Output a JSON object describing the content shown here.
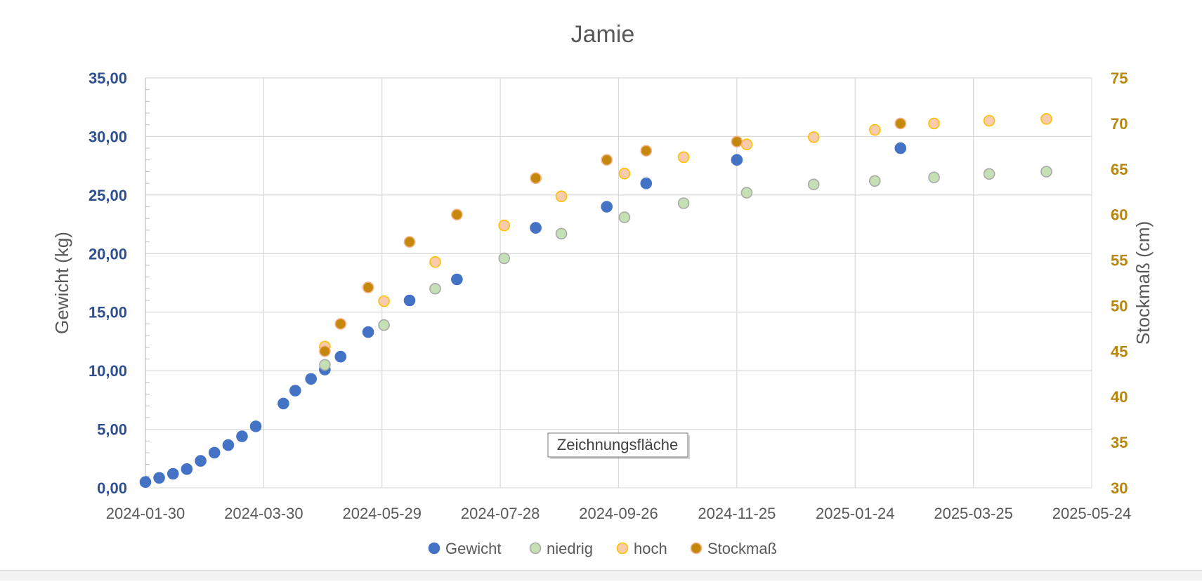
{
  "chart_data": {
    "type": "scatter",
    "title": "Jamie",
    "tooltip": "Zeichnungsfläche",
    "grid": true,
    "legend_position": "bottom",
    "x_axis": {
      "type": "date",
      "min": "2024-01-30",
      "max": "2025-05-24",
      "ticks": [
        "2024-01-30",
        "2024-03-30",
        "2024-05-29",
        "2024-07-28",
        "2024-09-26",
        "2024-11-25",
        "2025-01-24",
        "2025-03-25",
        "2025-05-24"
      ]
    },
    "y_axis_left": {
      "label": "Gewicht (kg)",
      "min": 0,
      "max": 35,
      "ticks": [
        "0,00",
        "5,00",
        "10,00",
        "15,00",
        "20,00",
        "25,00",
        "30,00",
        "35,00"
      ],
      "color": "#2f4f8f"
    },
    "y_axis_right": {
      "label": "Stockmaß (cm)",
      "min": 30,
      "max": 75,
      "ticks": [
        "30",
        "35",
        "40",
        "45",
        "50",
        "55",
        "60",
        "65",
        "70",
        "75"
      ],
      "color": "#b8860b"
    },
    "series": [
      {
        "name": "Gewicht",
        "axis": "left",
        "fill": "#4472c4",
        "stroke": "#4472c4",
        "points": [
          [
            "2024-01-30",
            0.5
          ],
          [
            "2024-02-06",
            0.85
          ],
          [
            "2024-02-13",
            1.2
          ],
          [
            "2024-02-20",
            1.6
          ],
          [
            "2024-02-27",
            2.3
          ],
          [
            "2024-03-05",
            3.0
          ],
          [
            "2024-03-12",
            3.65
          ],
          [
            "2024-03-19",
            4.4
          ],
          [
            "2024-03-26",
            5.25
          ],
          [
            "2024-04-09",
            7.2
          ],
          [
            "2024-04-15",
            8.3
          ],
          [
            "2024-04-23",
            9.3
          ],
          [
            "2024-04-30",
            10.1
          ],
          [
            "2024-05-08",
            11.2
          ],
          [
            "2024-05-22",
            13.3
          ],
          [
            "2024-06-12",
            16.0
          ],
          [
            "2024-07-06",
            17.8
          ],
          [
            "2024-08-15",
            22.2
          ],
          [
            "2024-09-20",
            24.0
          ],
          [
            "2024-10-10",
            26.0
          ],
          [
            "2024-11-25",
            28.0
          ],
          [
            "2025-02-16",
            29.0
          ]
        ]
      },
      {
        "name": "niedrig",
        "axis": "left",
        "fill": "#c5e0b4",
        "stroke": "#a9a9a9",
        "points": [
          [
            "2024-04-30",
            10.5
          ],
          [
            "2024-05-30",
            13.9
          ],
          [
            "2024-06-25",
            17.0
          ],
          [
            "2024-07-30",
            19.6
          ],
          [
            "2024-08-28",
            21.7
          ],
          [
            "2024-09-29",
            23.1
          ],
          [
            "2024-10-29",
            24.3
          ],
          [
            "2024-11-30",
            25.2
          ],
          [
            "2025-01-03",
            25.9
          ],
          [
            "2025-02-03",
            26.2
          ],
          [
            "2025-03-05",
            26.5
          ],
          [
            "2025-04-02",
            26.8
          ],
          [
            "2025-05-01",
            27.0
          ]
        ]
      },
      {
        "name": "hoch",
        "axis": "right",
        "fill": "#f8cbad",
        "stroke": "#ffc000",
        "points": [
          [
            "2024-04-30",
            45.5
          ],
          [
            "2024-05-30",
            50.5
          ],
          [
            "2024-06-25",
            54.8
          ],
          [
            "2024-07-30",
            58.8
          ],
          [
            "2024-08-28",
            62.0
          ],
          [
            "2024-09-29",
            64.5
          ],
          [
            "2024-10-29",
            66.3
          ],
          [
            "2024-11-30",
            67.7
          ],
          [
            "2025-01-03",
            68.5
          ],
          [
            "2025-02-03",
            69.3
          ],
          [
            "2025-03-05",
            70.0
          ],
          [
            "2025-04-02",
            70.3
          ],
          [
            "2025-05-01",
            70.5
          ]
        ]
      },
      {
        "name": "Stockmaß",
        "axis": "right",
        "fill": "#c5870c",
        "stroke": "#f4b183",
        "points": [
          [
            "2024-04-30",
            45.0
          ],
          [
            "2024-05-08",
            48.0
          ],
          [
            "2024-05-22",
            52.0
          ],
          [
            "2024-06-12",
            57.0
          ],
          [
            "2024-07-06",
            60.0
          ],
          [
            "2024-08-15",
            64.0
          ],
          [
            "2024-09-20",
            66.0
          ],
          [
            "2024-10-10",
            67.0
          ],
          [
            "2024-11-25",
            68.0
          ],
          [
            "2025-02-16",
            70.0
          ]
        ]
      }
    ]
  }
}
